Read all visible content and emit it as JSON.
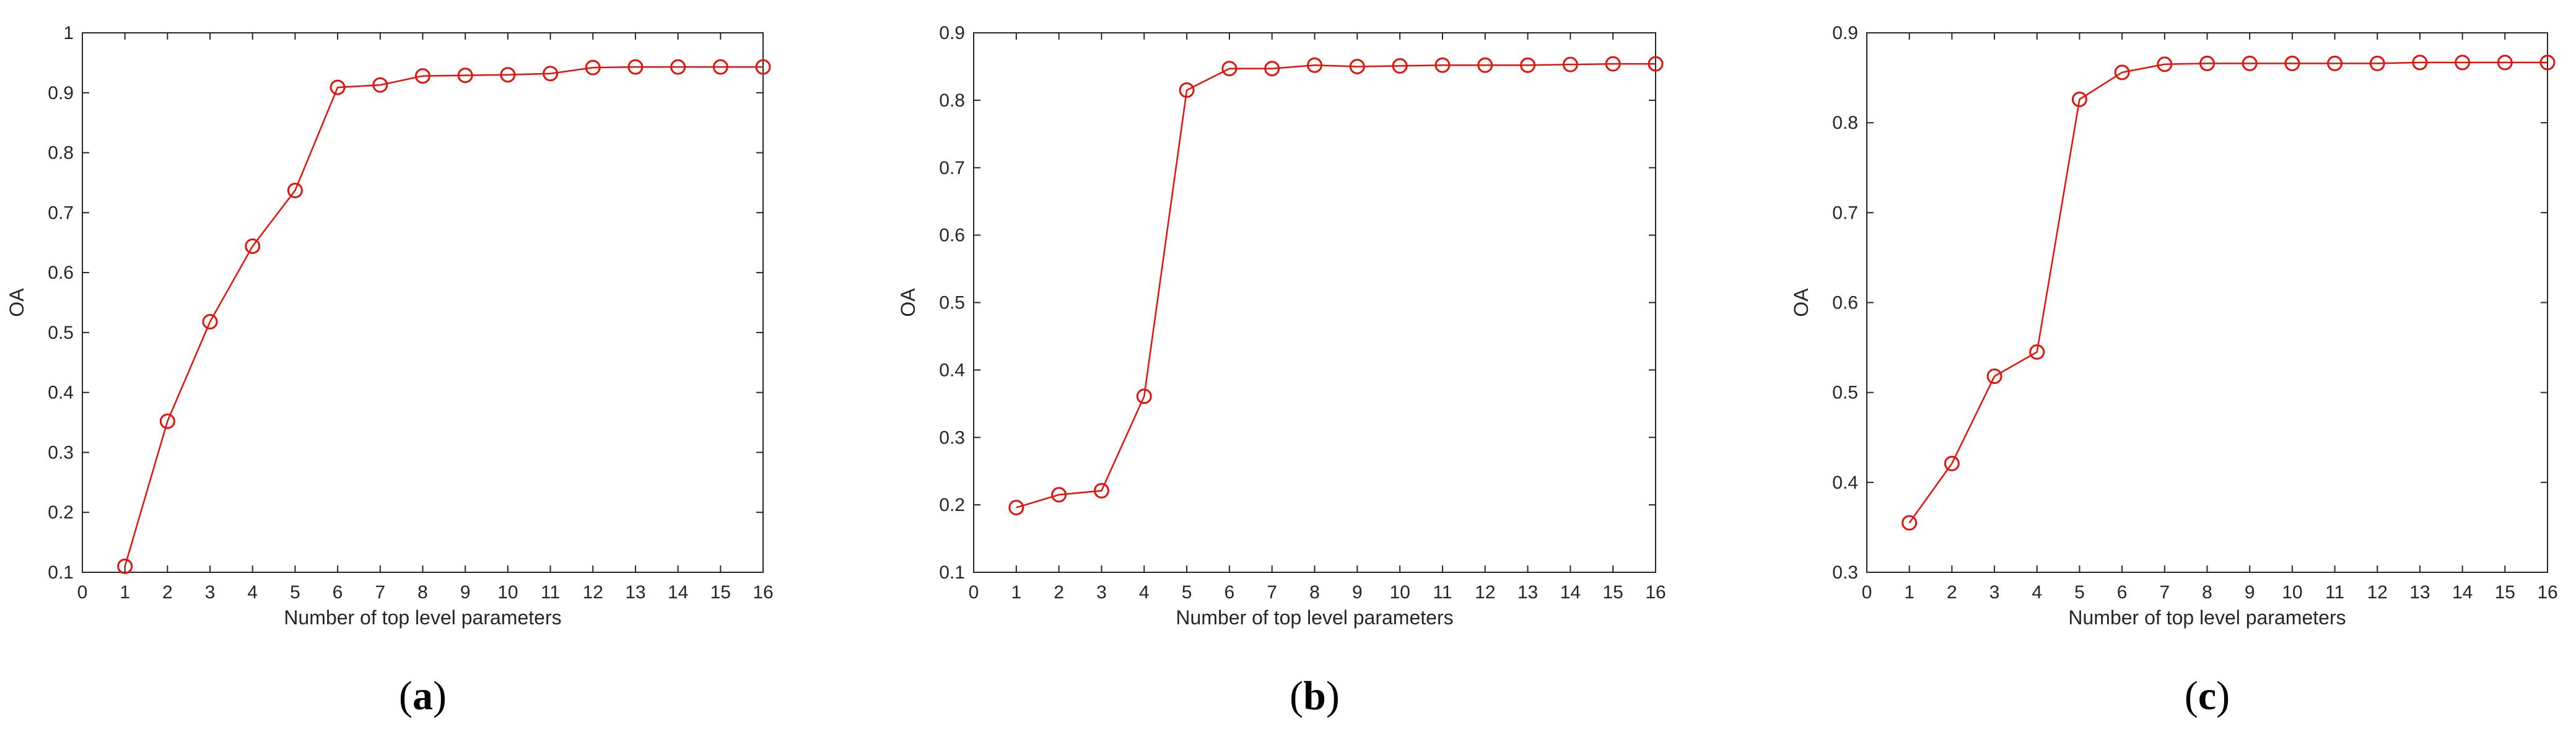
{
  "chart_data": [
    {
      "type": "line",
      "panel_label": "a",
      "title": "",
      "xlabel": "Number of top level parameters",
      "ylabel": "OA",
      "xlim": [
        0,
        16
      ],
      "ylim": [
        0.1,
        1
      ],
      "xticks": [
        0,
        1,
        2,
        3,
        4,
        5,
        6,
        7,
        8,
        9,
        10,
        11,
        12,
        13,
        14,
        15,
        16
      ],
      "yticks": [
        0.1,
        0.2,
        0.3,
        0.4,
        0.5,
        0.6,
        0.7,
        0.8,
        0.9,
        1
      ],
      "ytick_labels": [
        "0.1",
        "0.2",
        "0.3",
        "0.4",
        "0.5",
        "0.6",
        "0.7",
        "0.8",
        "0.9",
        "1"
      ],
      "grid": false,
      "series_color": "#e3120b",
      "marker": "circle",
      "series": [
        {
          "x": [
            1,
            2,
            3,
            4,
            5,
            6,
            7,
            8,
            9,
            10,
            11,
            12,
            13,
            14,
            15,
            16
          ],
          "values": [
            0.11,
            0.352,
            0.518,
            0.644,
            0.737,
            0.909,
            0.913,
            0.928,
            0.929,
            0.93,
            0.932,
            0.942,
            0.943,
            0.943,
            0.943,
            0.943
          ]
        }
      ]
    },
    {
      "type": "line",
      "panel_label": "b",
      "title": "",
      "xlabel": "Number of top level parameters",
      "ylabel": "OA",
      "xlim": [
        0,
        16
      ],
      "ylim": [
        0.1,
        0.9
      ],
      "xticks": [
        0,
        1,
        2,
        3,
        4,
        5,
        6,
        7,
        8,
        9,
        10,
        11,
        12,
        13,
        14,
        15,
        16
      ],
      "yticks": [
        0.1,
        0.2,
        0.3,
        0.4,
        0.5,
        0.6,
        0.7,
        0.8,
        0.9
      ],
      "ytick_labels": [
        "0.1",
        "0.2",
        "0.3",
        "0.4",
        "0.5",
        "0.6",
        "0.7",
        "0.8",
        "0.9"
      ],
      "grid": false,
      "series_color": "#e3120b",
      "marker": "circle",
      "series": [
        {
          "x": [
            1,
            2,
            3,
            4,
            5,
            6,
            7,
            8,
            9,
            10,
            11,
            12,
            13,
            14,
            15,
            16
          ],
          "values": [
            0.196,
            0.215,
            0.221,
            0.361,
            0.815,
            0.847,
            0.847,
            0.852,
            0.85,
            0.851,
            0.852,
            0.852,
            0.852,
            0.853,
            0.854,
            0.854
          ]
        }
      ]
    },
    {
      "type": "line",
      "panel_label": "c",
      "title": "",
      "xlabel": "Number of top level parameters",
      "ylabel": "OA",
      "xlim": [
        0,
        16
      ],
      "ylim": [
        0.3,
        0.9
      ],
      "xticks": [
        0,
        1,
        2,
        3,
        4,
        5,
        6,
        7,
        8,
        9,
        10,
        11,
        12,
        13,
        14,
        15,
        16
      ],
      "yticks": [
        0.3,
        0.4,
        0.5,
        0.6,
        0.7,
        0.8,
        0.9
      ],
      "ytick_labels": [
        "0.3",
        "0.4",
        "0.5",
        "0.6",
        "0.7",
        "0.8",
        "0.9"
      ],
      "grid": false,
      "series_color": "#e3120b",
      "marker": "circle",
      "series": [
        {
          "x": [
            1,
            2,
            3,
            4,
            5,
            6,
            7,
            8,
            9,
            10,
            11,
            12,
            13,
            14,
            15,
            16
          ],
          "values": [
            0.355,
            0.421,
            0.518,
            0.545,
            0.826,
            0.856,
            0.865,
            0.866,
            0.866,
            0.866,
            0.866,
            0.866,
            0.867,
            0.867,
            0.867,
            0.867
          ]
        }
      ]
    }
  ]
}
